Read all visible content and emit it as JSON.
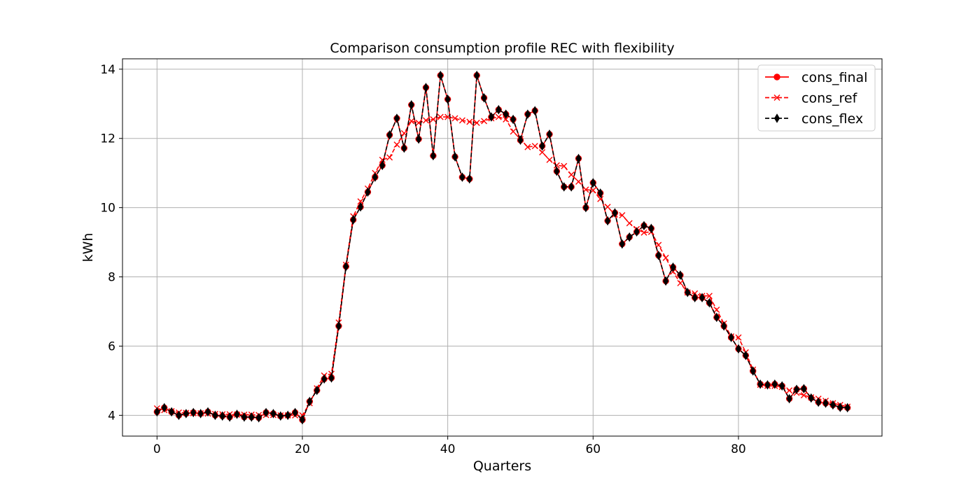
{
  "chart_data": {
    "type": "line",
    "title": "Comparison consumption profile REC with flexibility",
    "xlabel": "Quarters",
    "ylabel": "kWh",
    "xlim": [
      -4.75,
      99.75
    ],
    "ylim": [
      3.4,
      14.3
    ],
    "xticks": [
      0,
      20,
      40,
      60,
      80
    ],
    "yticks": [
      4,
      6,
      8,
      10,
      12,
      14
    ],
    "grid": true,
    "legend_position": "top-right",
    "x": [
      0,
      1,
      2,
      3,
      4,
      5,
      6,
      7,
      8,
      9,
      10,
      11,
      12,
      13,
      14,
      15,
      16,
      17,
      18,
      19,
      20,
      21,
      22,
      23,
      24,
      25,
      26,
      27,
      28,
      29,
      30,
      31,
      32,
      33,
      34,
      35,
      36,
      37,
      38,
      39,
      40,
      41,
      42,
      43,
      44,
      45,
      46,
      47,
      48,
      49,
      50,
      51,
      52,
      53,
      54,
      55,
      56,
      57,
      58,
      59,
      60,
      61,
      62,
      63,
      64,
      65,
      66,
      67,
      68,
      69,
      70,
      71,
      72,
      73,
      74,
      75,
      76,
      77,
      78,
      79,
      80,
      81,
      82,
      83,
      84,
      85,
      86,
      87,
      88,
      89,
      90,
      91,
      92,
      93,
      94,
      95
    ],
    "series": [
      {
        "name": "cons_final",
        "color": "#ff0000",
        "linestyle": "solid",
        "marker": "circle",
        "values": [
          4.1,
          4.22,
          4.1,
          4.0,
          4.05,
          4.08,
          4.05,
          4.1,
          4.0,
          3.98,
          3.95,
          4.03,
          3.95,
          3.95,
          3.93,
          4.08,
          4.05,
          3.98,
          4.0,
          4.08,
          3.87,
          4.4,
          4.72,
          5.05,
          5.08,
          6.58,
          8.3,
          9.65,
          10.02,
          10.45,
          10.88,
          11.22,
          12.1,
          12.58,
          11.72,
          12.97,
          11.98,
          13.47,
          11.5,
          13.82,
          13.13,
          11.47,
          10.88,
          10.83,
          13.82,
          13.17,
          12.62,
          12.83,
          12.7,
          12.55,
          11.95,
          12.7,
          12.8,
          11.78,
          12.12,
          11.05,
          10.6,
          10.6,
          11.42,
          10.0,
          10.72,
          10.42,
          9.62,
          9.85,
          8.95,
          9.15,
          9.3,
          9.48,
          9.4,
          8.62,
          7.88,
          8.28,
          8.05,
          7.55,
          7.4,
          7.4,
          7.25,
          6.83,
          6.58,
          6.25,
          5.92,
          5.73,
          5.28,
          4.9,
          4.88,
          4.9,
          4.85,
          4.48,
          4.75,
          4.77,
          4.5,
          4.38,
          4.35,
          4.3,
          4.23,
          4.22
        ]
      },
      {
        "name": "cons_ref",
        "color": "#ff0000",
        "linestyle": "dashed",
        "marker": "x",
        "values": [
          4.2,
          4.15,
          4.12,
          4.08,
          4.07,
          4.06,
          4.06,
          4.05,
          4.04,
          4.03,
          4.03,
          4.02,
          4.02,
          4.02,
          4.01,
          4.01,
          4.01,
          4.0,
          4.0,
          4.0,
          4.0,
          4.35,
          4.78,
          5.15,
          5.2,
          6.68,
          8.35,
          9.75,
          10.18,
          10.55,
          11.0,
          11.38,
          11.45,
          11.82,
          12.15,
          12.5,
          12.45,
          12.52,
          12.55,
          12.62,
          12.62,
          12.58,
          12.52,
          12.48,
          12.45,
          12.5,
          12.58,
          12.62,
          12.55,
          12.2,
          11.98,
          11.75,
          11.78,
          11.6,
          11.38,
          11.22,
          11.2,
          10.95,
          10.75,
          10.52,
          10.5,
          10.25,
          10.02,
          9.8,
          9.78,
          9.55,
          9.38,
          9.28,
          9.3,
          8.92,
          8.55,
          8.15,
          7.82,
          7.55,
          7.52,
          7.45,
          7.45,
          7.05,
          6.65,
          6.28,
          6.25,
          5.82,
          5.32,
          4.88,
          4.85,
          4.85,
          4.82,
          4.72,
          4.65,
          4.58,
          4.52,
          4.48,
          4.42,
          4.35,
          4.3,
          4.25
        ]
      },
      {
        "name": "cons_flex",
        "color": "#000000",
        "linestyle": "dashed",
        "marker": "thin-diamond",
        "values": [
          4.1,
          4.22,
          4.1,
          4.0,
          4.05,
          4.08,
          4.05,
          4.1,
          4.0,
          3.98,
          3.95,
          4.03,
          3.95,
          3.95,
          3.93,
          4.08,
          4.05,
          3.98,
          4.0,
          4.08,
          3.87,
          4.4,
          4.72,
          5.05,
          5.08,
          6.58,
          8.3,
          9.65,
          10.02,
          10.45,
          10.88,
          11.22,
          12.1,
          12.58,
          11.72,
          12.97,
          11.98,
          13.47,
          11.5,
          13.82,
          13.13,
          11.47,
          10.88,
          10.83,
          13.82,
          13.17,
          12.62,
          12.83,
          12.7,
          12.55,
          11.95,
          12.7,
          12.8,
          11.78,
          12.12,
          11.05,
          10.6,
          10.6,
          11.42,
          10.0,
          10.72,
          10.42,
          9.62,
          9.85,
          8.95,
          9.15,
          9.3,
          9.48,
          9.4,
          8.62,
          7.88,
          8.28,
          8.05,
          7.55,
          7.4,
          7.4,
          7.25,
          6.83,
          6.58,
          6.25,
          5.92,
          5.73,
          5.28,
          4.9,
          4.88,
          4.9,
          4.85,
          4.48,
          4.75,
          4.77,
          4.5,
          4.38,
          4.35,
          4.3,
          4.23,
          4.22
        ]
      }
    ]
  }
}
